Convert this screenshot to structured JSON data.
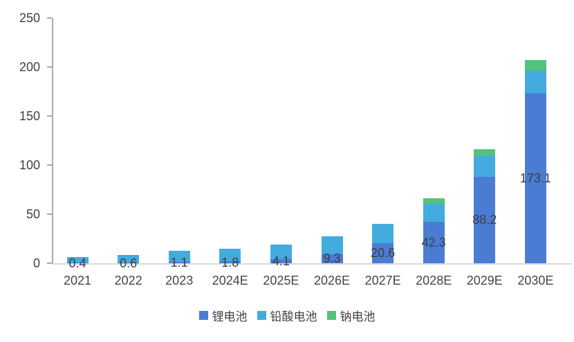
{
  "chart_data": {
    "type": "bar",
    "stacked": true,
    "title": "",
    "xlabel": "",
    "ylabel": "",
    "categories": [
      "2021",
      "2022",
      "2023",
      "2024E",
      "2025E",
      "2026E",
      "2027E",
      "2028E",
      "2029E",
      "2030E"
    ],
    "series": [
      {
        "id": "lithium",
        "name": "锂电池",
        "color": "#4a7cd4",
        "values": [
          0.4,
          0.6,
          1.1,
          1.8,
          4.1,
          9.3,
          20.6,
          42.3,
          88.2,
          173.1
        ]
      },
      {
        "id": "lead-acid",
        "name": "铅酸电池",
        "color": "#44abdf",
        "values": [
          5.9,
          8.2,
          11.4,
          13.2,
          15.0,
          17.9,
          19.5,
          18.0,
          21.0,
          23.4
        ]
      },
      {
        "id": "sodium",
        "name": "钠电池",
        "color": "#55c17b",
        "values": [
          0,
          0,
          0,
          0,
          0,
          0,
          0,
          6.0,
          7.0,
          10.5
        ]
      }
    ],
    "data_labels": {
      "series_id": "lithium",
      "values": [
        "0.4",
        "0.6",
        "1.1",
        "1.8",
        "4.1",
        "9.3",
        "20.6",
        "42.3",
        "88.2",
        "173.1"
      ]
    },
    "ylim": [
      0,
      250
    ],
    "yticks": [
      "0",
      "50",
      "100",
      "150",
      "200",
      "250"
    ],
    "grid": false,
    "legend_position": "bottom",
    "axis_colors": {
      "y_axis": "#a9a9a9",
      "x_axis": "#d9d9d9",
      "tick_text": "#404040"
    }
  }
}
